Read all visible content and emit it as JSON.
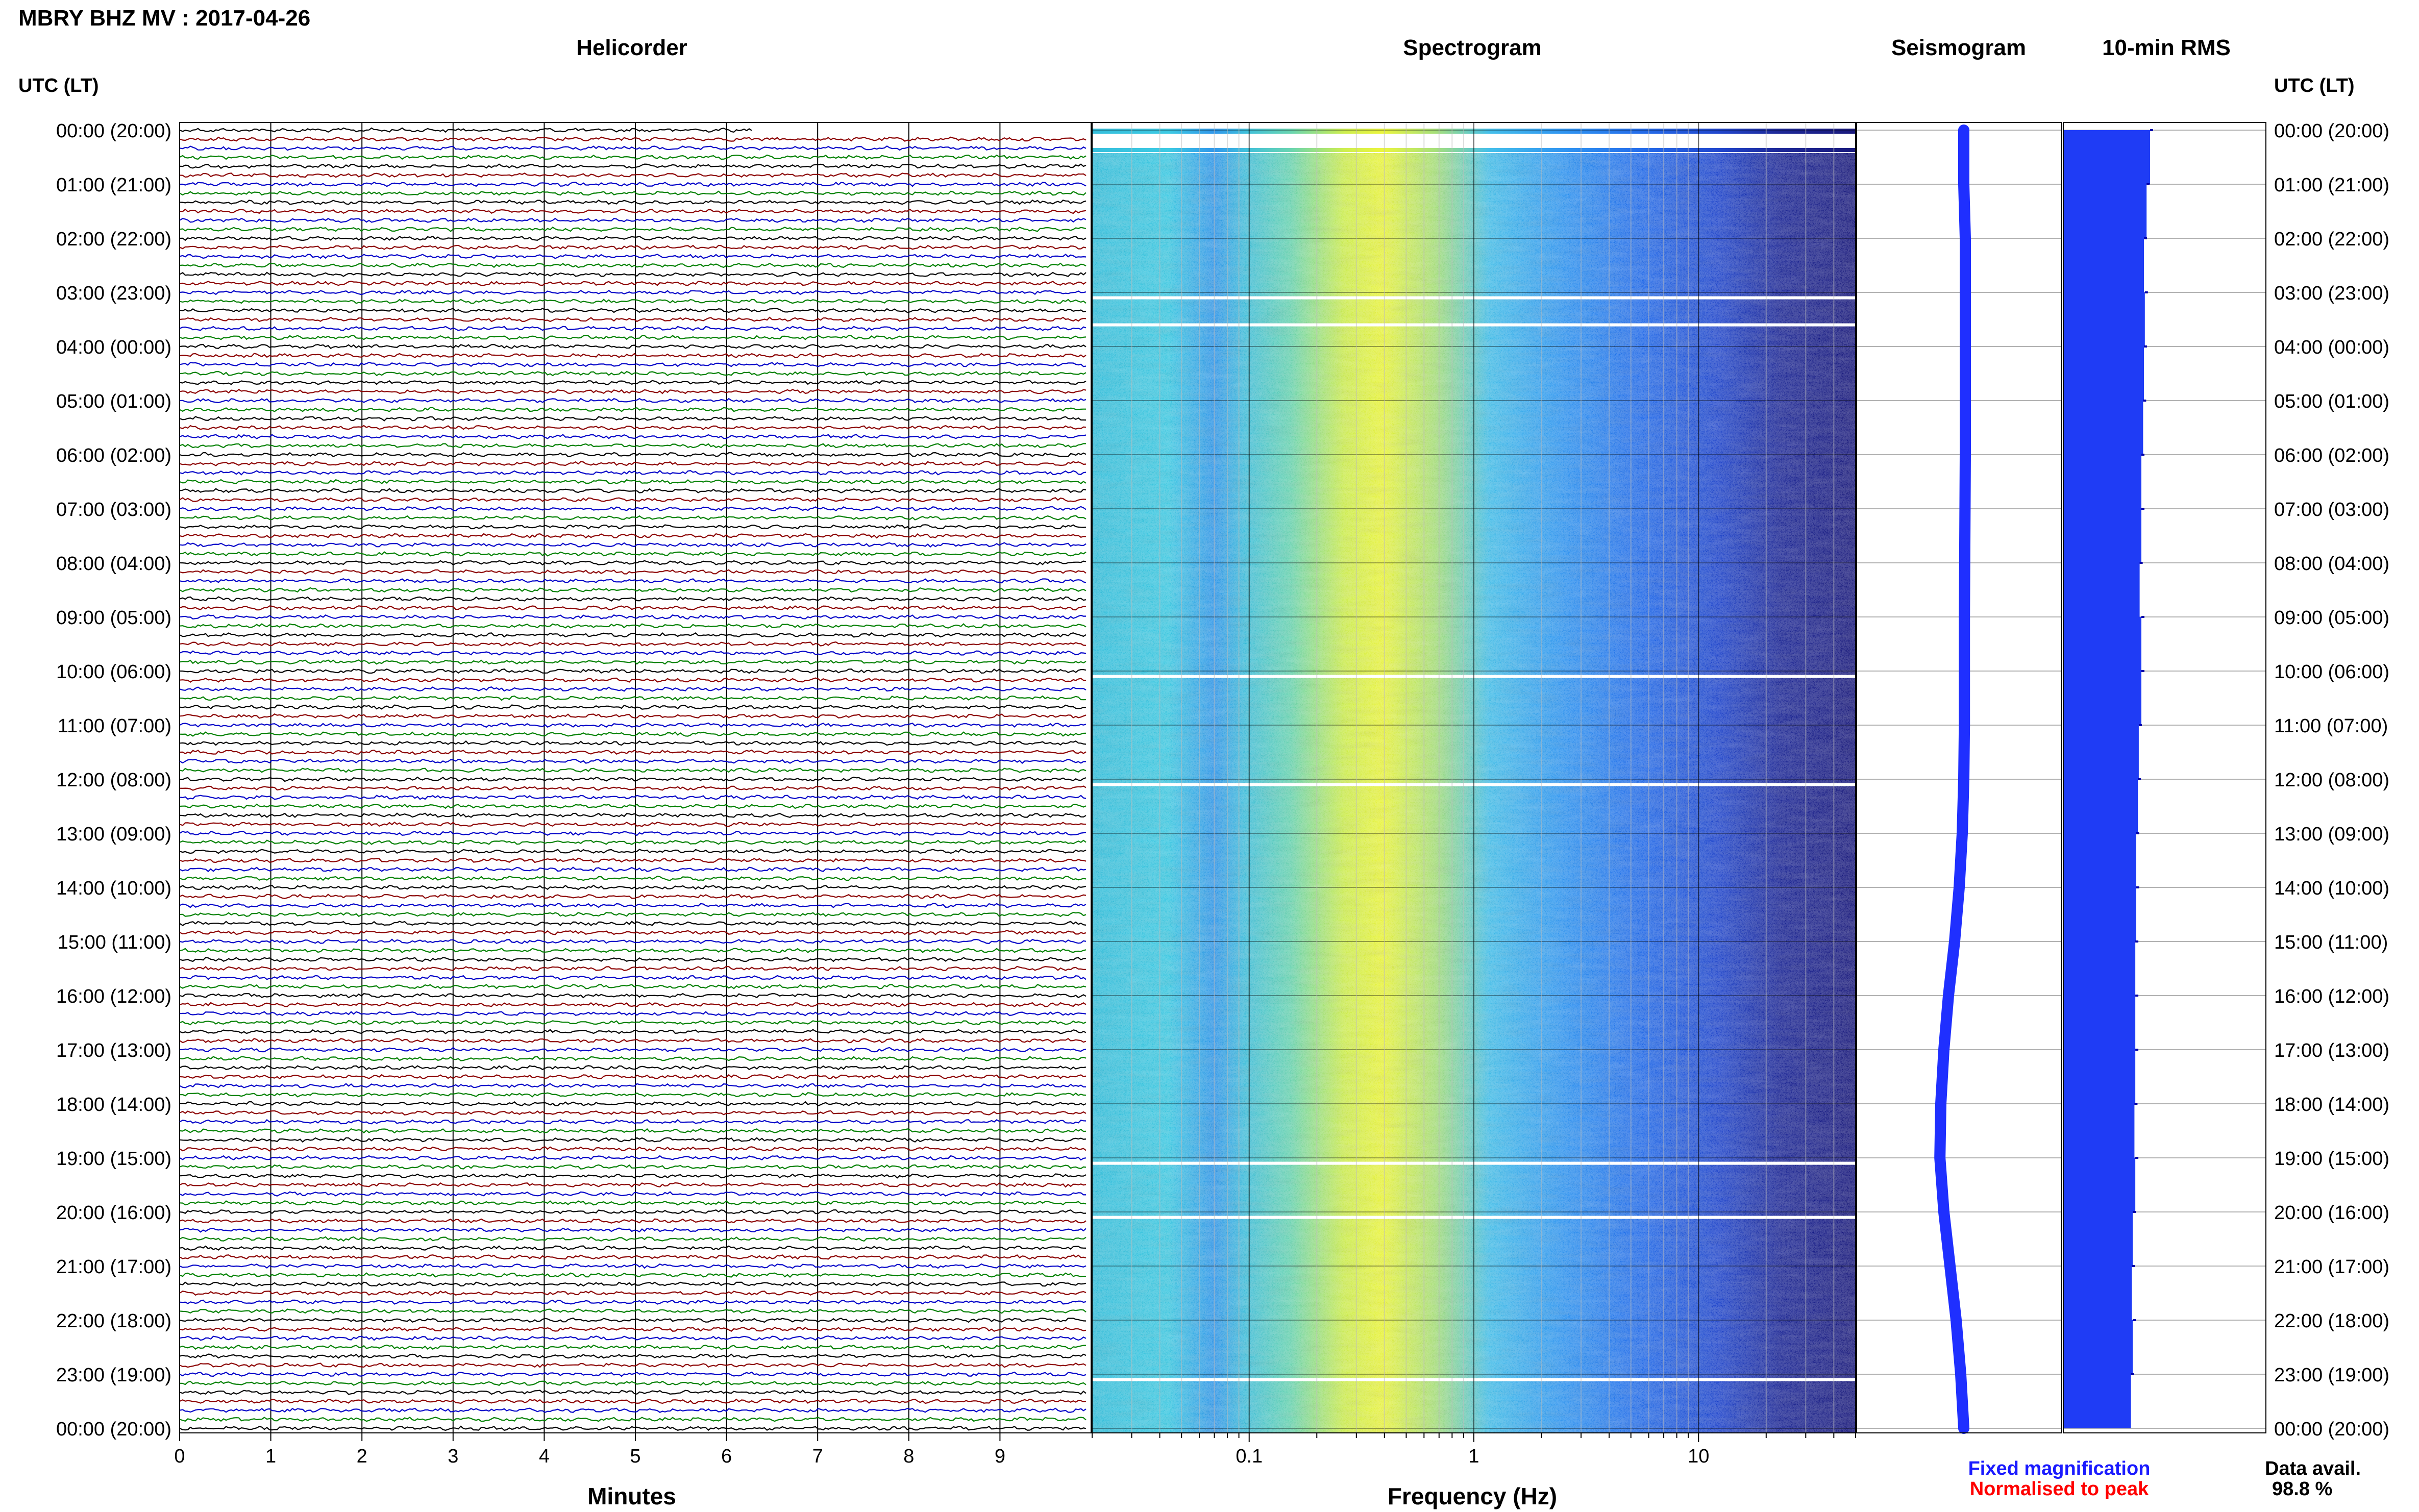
{
  "header": {
    "title": "MBRY BHZ MV : 2017-04-26"
  },
  "colors": {
    "trace_black": "#000000",
    "trace_red": "#8b0000",
    "trace_blue": "#0000c8",
    "trace_green": "#008000",
    "seismogram": "#1f2fff",
    "rms": "#1f3cf5",
    "fixed_magnification": "#1a1aff",
    "normalised_to_peak": "#ff0000"
  },
  "chart_data": [
    {
      "type": "line",
      "title": "Helicorder",
      "xlabel": "Minutes",
      "xlim": [
        0,
        10
      ],
      "x_ticks": [
        "0",
        "1",
        "2",
        "3",
        "4",
        "5",
        "6",
        "7",
        "8",
        "9"
      ],
      "ylabel": "UTC (LT)",
      "row_labels": [
        "00:00 (20:00)",
        "01:00 (21:00)",
        "02:00 (22:00)",
        "03:00 (23:00)",
        "04:00 (00:00)",
        "05:00 (01:00)",
        "06:00 (02:00)",
        "07:00 (03:00)",
        "08:00 (04:00)",
        "09:00 (05:00)",
        "10:00 (06:00)",
        "11:00 (07:00)",
        "12:00 (08:00)",
        "13:00 (09:00)",
        "14:00 (10:00)",
        "15:00 (11:00)",
        "16:00 (12:00)",
        "17:00 (13:00)",
        "18:00 (14:00)",
        "19:00 (15:00)",
        "20:00 (16:00)",
        "21:00 (17:00)",
        "22:00 (18:00)",
        "23:00 (19:00)",
        "00:00 (20:00)"
      ],
      "trace_cycle": [
        "black",
        "red",
        "blue",
        "green"
      ],
      "minutes_per_trace": 10,
      "traces_per_hour": 6,
      "trace_count": 145,
      "grid": true
    },
    {
      "type": "heatmap",
      "title": "Spectrogram",
      "xlabel": "Frequency (Hz)",
      "x_scale": "log",
      "x_ticks": [
        "0.1",
        "1",
        "10"
      ],
      "xlim": [
        0.02,
        50
      ],
      "colormap": [
        "#00006e",
        "#0000c8",
        "#0050ff",
        "#00b4ff",
        "#3cd2c8",
        "#8cdc64",
        "#dcf028",
        "#ffff00"
      ],
      "peak_band_hz": [
        0.25,
        0.5
      ],
      "gap_rows_utc_hours": [
        0.4,
        3.1,
        3.6,
        10.1,
        12.1,
        19.1,
        20.1,
        23.1
      ]
    },
    {
      "type": "line",
      "title": "Seismogram",
      "description_rows": "long-period trace, one sample per row",
      "offsets": [
        0.0,
        0.0,
        0.05,
        0.05,
        0.05,
        0.05,
        0.05,
        0.04,
        0.03,
        0.02,
        0.02,
        0.02,
        0.0,
        -0.05,
        -0.15,
        -0.3,
        -0.5,
        -0.65,
        -0.75,
        -0.78,
        -0.65,
        -0.45,
        -0.25,
        -0.1,
        0.0
      ]
    },
    {
      "type": "bar",
      "title": "10-min RMS",
      "orientation": "horizontal",
      "hourly_values": [
        1.0,
        0.96,
        0.93,
        0.94,
        0.93,
        0.92,
        0.9,
        0.9,
        0.88,
        0.9,
        0.9,
        0.87,
        0.86,
        0.84,
        0.84,
        0.83,
        0.83,
        0.83,
        0.82,
        0.83,
        0.8,
        0.79,
        0.8,
        0.78,
        0.77
      ]
    }
  ],
  "legend": {
    "fixed_magnification": "Fixed magnification",
    "normalised_to_peak": "Normalised to peak",
    "data_avail_label": "Data avail.",
    "data_avail_value": "98.8 %"
  }
}
